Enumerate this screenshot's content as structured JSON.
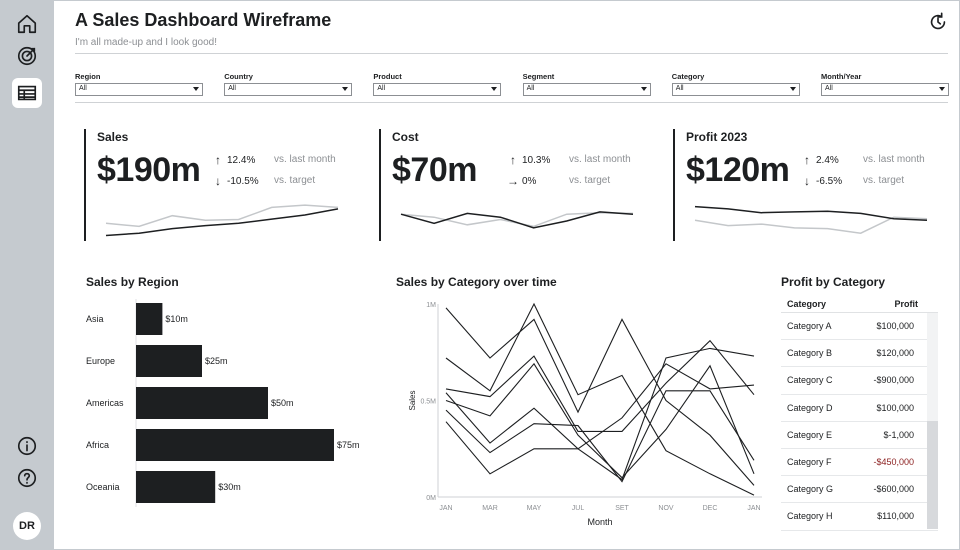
{
  "header": {
    "title": "A Sales Dashboard Wireframe",
    "subtitle": "I'm all made-up and I look good!"
  },
  "sidebar": {
    "items": [
      {
        "icon": "home-icon"
      },
      {
        "icon": "target-icon"
      },
      {
        "icon": "table-icon",
        "active": true
      }
    ],
    "bottom": [
      {
        "icon": "info-icon"
      },
      {
        "icon": "help-icon"
      }
    ],
    "avatar": "DR"
  },
  "filters": [
    {
      "label": "Region",
      "value": "All"
    },
    {
      "label": "Country",
      "value": "All"
    },
    {
      "label": "Product",
      "value": "All"
    },
    {
      "label": "Segment",
      "value": "All"
    },
    {
      "label": "Category",
      "value": "All"
    },
    {
      "label": "Month/Year",
      "value": "All"
    }
  ],
  "kpis": [
    {
      "title": "Sales",
      "value": "$190m",
      "deltas": [
        {
          "dir": "up",
          "value": "12.4%",
          "vs": "vs. last month"
        },
        {
          "dir": "down",
          "value": "-10.5%",
          "vs": "vs. target"
        }
      ],
      "spark_dark": [
        4,
        10,
        22,
        30,
        36,
        47,
        58,
        74
      ],
      "spark_light": [
        36,
        28,
        56,
        44,
        46,
        78,
        84,
        78
      ]
    },
    {
      "title": "Cost",
      "value": "$70m",
      "deltas": [
        {
          "dir": "up",
          "value": "10.3%",
          "vs": "vs. last month"
        },
        {
          "dir": "right",
          "value": "0%",
          "vs": "vs. target"
        }
      ],
      "spark_dark": [
        60,
        36,
        62,
        52,
        24,
        42,
        66,
        60
      ],
      "spark_light": [
        60,
        52,
        32,
        46,
        28,
        60,
        64,
        62
      ]
    },
    {
      "title": "Profit 2023",
      "value": "$120m",
      "deltas": [
        {
          "dir": "up",
          "value": "2.4%",
          "vs": "vs. last month"
        },
        {
          "dir": "down",
          "value": "-6.5%",
          "vs": "vs. target"
        }
      ],
      "spark_dark": [
        80,
        74,
        64,
        66,
        68,
        62,
        48,
        44
      ],
      "spark_light": [
        44,
        30,
        34,
        24,
        22,
        10,
        52,
        48
      ]
    }
  ],
  "region_chart": {
    "title": "Sales by Region",
    "categories": [
      "Asia",
      "Europe",
      "Americas",
      "Africa",
      "Oceania"
    ],
    "values": [
      10,
      25,
      50,
      75,
      30
    ],
    "labels": [
      "$10m",
      "$25m",
      "$50m",
      "$75m",
      "$30m"
    ]
  },
  "chart_data": {
    "type": "line",
    "title": "Sales by Category over time",
    "xlabel": "Month",
    "ylabel": "Sales",
    "x": [
      "JAN",
      "MAR",
      "MAY",
      "JUL",
      "SET",
      "NOV",
      "DEC",
      "JAN"
    ],
    "yticks": [
      "0M",
      "0.5M",
      "1M"
    ],
    "ylim": [
      0,
      1000000
    ],
    "series": [
      {
        "values": [
          720000,
          550000,
          1000000,
          530000,
          630000,
          240000,
          120000,
          10000
        ]
      },
      {
        "values": [
          980000,
          720000,
          920000,
          440000,
          920000,
          500000,
          320000,
          60000
        ]
      },
      {
        "values": [
          540000,
          280000,
          460000,
          250000,
          90000,
          720000,
          770000,
          730000
        ]
      },
      {
        "values": [
          560000,
          520000,
          730000,
          340000,
          340000,
          590000,
          810000,
          530000
        ]
      },
      {
        "values": [
          390000,
          120000,
          250000,
          250000,
          410000,
          690000,
          560000,
          580000
        ]
      },
      {
        "values": [
          500000,
          420000,
          690000,
          320000,
          100000,
          350000,
          680000,
          120000
        ]
      },
      {
        "values": [
          450000,
          230000,
          380000,
          370000,
          80000,
          550000,
          550000,
          190000
        ]
      }
    ]
  },
  "profit_table": {
    "title": "Profit by Category",
    "columns": [
      "Category",
      "Profit"
    ],
    "rows": [
      {
        "category": "Category A",
        "profit": "$100,000",
        "red": false
      },
      {
        "category": "Category B",
        "profit": "$120,000",
        "red": false
      },
      {
        "category": "Category C",
        "profit": "-$900,000",
        "red": false
      },
      {
        "category": "Category D",
        "profit": "$100,000",
        "red": false
      },
      {
        "category": "Category E",
        "profit": "$-1,000",
        "red": false
      },
      {
        "category": "Category F",
        "profit": "-$450,000",
        "red": true
      },
      {
        "category": "Category G",
        "profit": "-$600,000",
        "red": false
      },
      {
        "category": "Category H",
        "profit": "$110,000",
        "red": false
      }
    ]
  },
  "colors": {
    "accent": "#1d1f21",
    "muted": "#8c8f93",
    "sidebar": "#c5cacf",
    "negative": "#8b1e1e",
    "spark_light": "#c4c7ca"
  }
}
